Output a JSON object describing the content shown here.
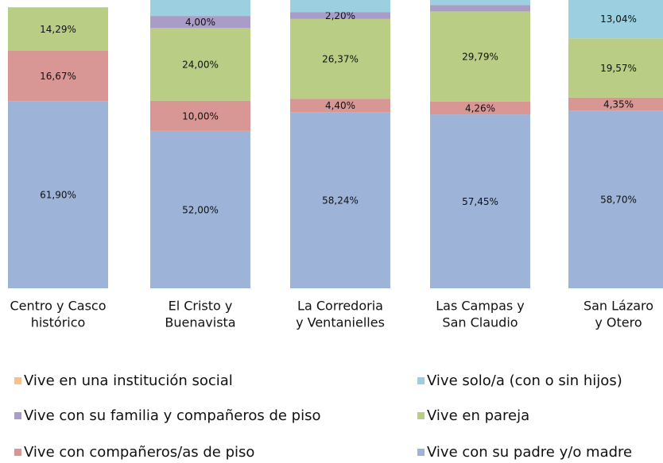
{
  "chart_data": {
    "type": "stacked_bar",
    "categories": [
      [
        "Centro y Casco",
        "histórico"
      ],
      [
        "El Cristo y",
        "Buenavista"
      ],
      [
        "La Corredoria",
        "y Ventanielles"
      ],
      [
        "Las Campas y",
        "San Claudio"
      ],
      [
        "San Lázaro",
        "y Otero"
      ]
    ],
    "ylim": [
      0,
      100
    ],
    "series": [
      {
        "name": "Vive con su padre y/o madre",
        "color": "#9db3d7",
        "values": [
          61.9,
          52.0,
          58.24,
          57.45,
          58.7
        ],
        "value_labels": [
          "61,90%",
          "52,00%",
          "58,24%",
          "57,45%",
          "58,70%"
        ]
      },
      {
        "name": "Vive con compañeros/as de piso",
        "color": "#d89795",
        "values": [
          16.67,
          10.0,
          4.4,
          4.26,
          4.35
        ],
        "value_labels": [
          "16,67%",
          "10,00%",
          "4,40%",
          "4,26%",
          "4,35%"
        ]
      },
      {
        "name": "Vive en pareja",
        "color": "#b9cd85",
        "values": [
          14.29,
          24.0,
          26.37,
          29.79,
          19.57
        ],
        "value_labels": [
          "14,29%",
          "24,00%",
          "26,37%",
          "29,79%",
          "19,57%"
        ]
      },
      {
        "name": "Vive con su familia y compañeros de piso",
        "color": "#a99cc7",
        "values": [
          null,
          4.0,
          2.2,
          2.13,
          null
        ],
        "value_labels": [
          null,
          "4,00%",
          "2,20%",
          null,
          null
        ]
      },
      {
        "name": "Vive solo/a (con o sin hijos)",
        "color": "#9ccfe0",
        "values": [
          null,
          10.0,
          8.79,
          6.38,
          13.04
        ],
        "value_labels": [
          null,
          null,
          null,
          null,
          "13,04%"
        ]
      },
      {
        "name": "Vive en una institución social",
        "color": "#f5c18c",
        "values": [
          null,
          null,
          null,
          null,
          null
        ]
      }
    ]
  }
}
